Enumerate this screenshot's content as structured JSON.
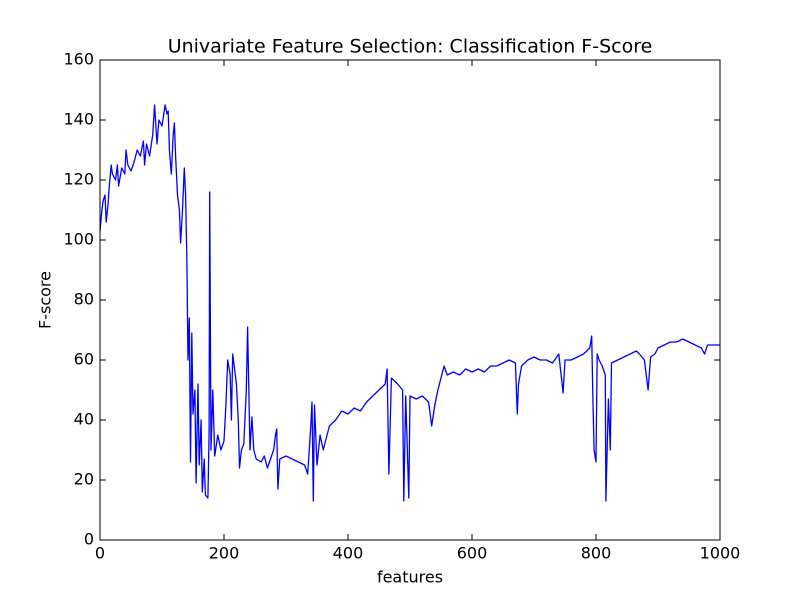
{
  "chart_data": {
    "type": "line",
    "title": "Univariate Feature Selection: Classification F-Score",
    "x_label": "features",
    "y_label": "F-score",
    "color": "#0000ff",
    "x": [
      0,
      3,
      5,
      8,
      10,
      13,
      15,
      18,
      20,
      25,
      28,
      30,
      35,
      40,
      42,
      45,
      50,
      55,
      60,
      65,
      70,
      72,
      75,
      80,
      85,
      88,
      92,
      95,
      100,
      105,
      108,
      110,
      112,
      115,
      118,
      120,
      122,
      125,
      128,
      130,
      133,
      136,
      138,
      140,
      142,
      144,
      146,
      148,
      150,
      153,
      155,
      158,
      160,
      163,
      165,
      168,
      170,
      174,
      176,
      177,
      179,
      182,
      185,
      190,
      195,
      200,
      203,
      206,
      210,
      212,
      214,
      220,
      223,
      225,
      228,
      232,
      236,
      238,
      242,
      245,
      248,
      252,
      260,
      265,
      270,
      275,
      280,
      283,
      285,
      287,
      290,
      300,
      310,
      320,
      330,
      335,
      340,
      342,
      344,
      346,
      350,
      355,
      360,
      370,
      380,
      390,
      400,
      410,
      420,
      430,
      440,
      450,
      460,
      463,
      466,
      470,
      480,
      488,
      490,
      493,
      498,
      500,
      510,
      520,
      530,
      535,
      540,
      545,
      550,
      555,
      560,
      570,
      580,
      590,
      600,
      610,
      620,
      630,
      640,
      650,
      660,
      670,
      673,
      675,
      680,
      690,
      700,
      710,
      720,
      730,
      740,
      747,
      750,
      760,
      770,
      780,
      790,
      793,
      795,
      797,
      800,
      802,
      805,
      810,
      815,
      816,
      820,
      823,
      825,
      835,
      845,
      855,
      865,
      870,
      878,
      884,
      888,
      895,
      900,
      910,
      920,
      930,
      940,
      950,
      960,
      970,
      975,
      980,
      990,
      1000
    ],
    "values": [
      103,
      110,
      113,
      115,
      106,
      112,
      118,
      125,
      122,
      120,
      125,
      118,
      124,
      122,
      130,
      125,
      123,
      126,
      130,
      128,
      133,
      125,
      132,
      128,
      135,
      145,
      132,
      140,
      138,
      145,
      142,
      143,
      130,
      122,
      135,
      139,
      128,
      115,
      110,
      99,
      110,
      124,
      115,
      95,
      60,
      74,
      26,
      69,
      42,
      50,
      19,
      52,
      25,
      40,
      16,
      27,
      15,
      14,
      35,
      116,
      30,
      50,
      28,
      35,
      30,
      33,
      45,
      60,
      55,
      40,
      62,
      52,
      40,
      24,
      30,
      32,
      50,
      71,
      30,
      41,
      30,
      27,
      26,
      28,
      24,
      27,
      30,
      35,
      37,
      17,
      27,
      28,
      27,
      26,
      25,
      22,
      38,
      46,
      13,
      45,
      25,
      35,
      30,
      38,
      40,
      43,
      42,
      44,
      43,
      46,
      48,
      50,
      52,
      57,
      22,
      54,
      52,
      50,
      13,
      48,
      14,
      48,
      47,
      48,
      46,
      38,
      45,
      50,
      54,
      58,
      55,
      56,
      55,
      57,
      56,
      57,
      56,
      58,
      58,
      59,
      60,
      59,
      42,
      52,
      58,
      60,
      61,
      60,
      60,
      59,
      62,
      49,
      60,
      60,
      61,
      62,
      64,
      68,
      47,
      30,
      26,
      62,
      60,
      58,
      55,
      13,
      47,
      30,
      59,
      60,
      61,
      62,
      63,
      62,
      60,
      50,
      61,
      62,
      64,
      65,
      66,
      66,
      67,
      66,
      65,
      64,
      62,
      65,
      65,
      65
    ],
    "xlim": [
      0,
      1000
    ],
    "xticks": [
      0,
      200,
      400,
      600,
      800,
      1000
    ],
    "ylim": [
      0,
      160
    ],
    "yticks": [
      0,
      20,
      40,
      60,
      80,
      100,
      120,
      140,
      160
    ]
  }
}
